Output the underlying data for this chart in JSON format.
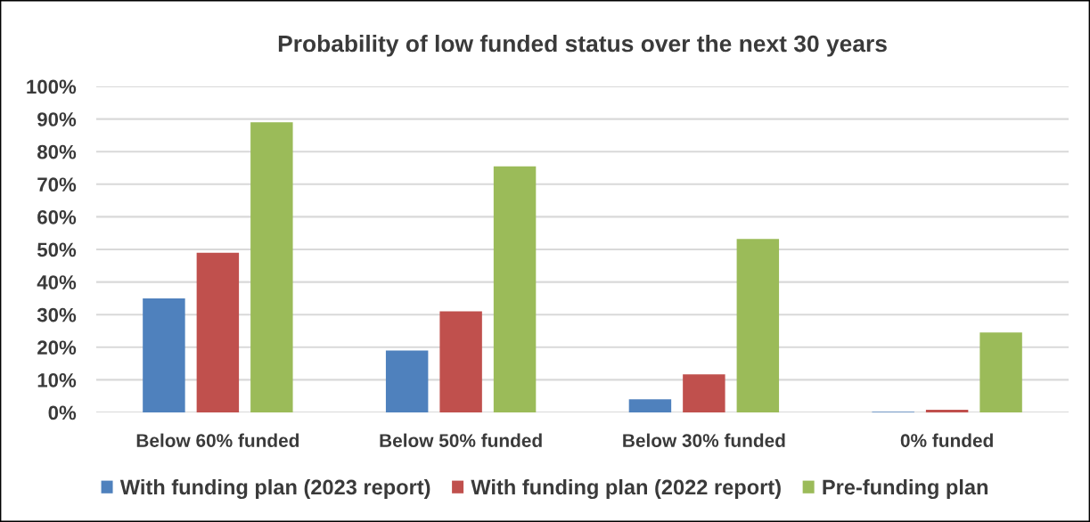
{
  "chart_data": {
    "type": "bar",
    "title": "Probability of low funded status over the next 30 years",
    "categories": [
      "Below 60% funded",
      "Below 50% funded",
      "Below 30% funded",
      "0% funded"
    ],
    "series": [
      {
        "name": "With funding plan (2023 report)",
        "color": "#4f81bd",
        "values": [
          35,
          19,
          4,
          0.2
        ]
      },
      {
        "name": "With funding plan (2022 report)",
        "color": "#c0504d",
        "values": [
          49,
          31,
          11.7,
          0.8
        ]
      },
      {
        "name": "Pre-funding plan",
        "color": "#9bbb59",
        "values": [
          89,
          75.5,
          53.2,
          24.5
        ]
      }
    ],
    "ylim": [
      0,
      100
    ],
    "yticks": [
      {
        "value": 0,
        "label": "0%"
      },
      {
        "value": 10,
        "label": "10%"
      },
      {
        "value": 20,
        "label": "20%"
      },
      {
        "value": 30,
        "label": "30%"
      },
      {
        "value": 40,
        "label": "40%"
      },
      {
        "value": 50,
        "label": "50%"
      },
      {
        "value": 60,
        "label": "60%"
      },
      {
        "value": 70,
        "label": "70%"
      },
      {
        "value": 80,
        "label": "80%"
      },
      {
        "value": 90,
        "label": "90%"
      },
      {
        "value": 100,
        "label": "100%"
      }
    ],
    "grid": "y",
    "legend": "bottom"
  }
}
